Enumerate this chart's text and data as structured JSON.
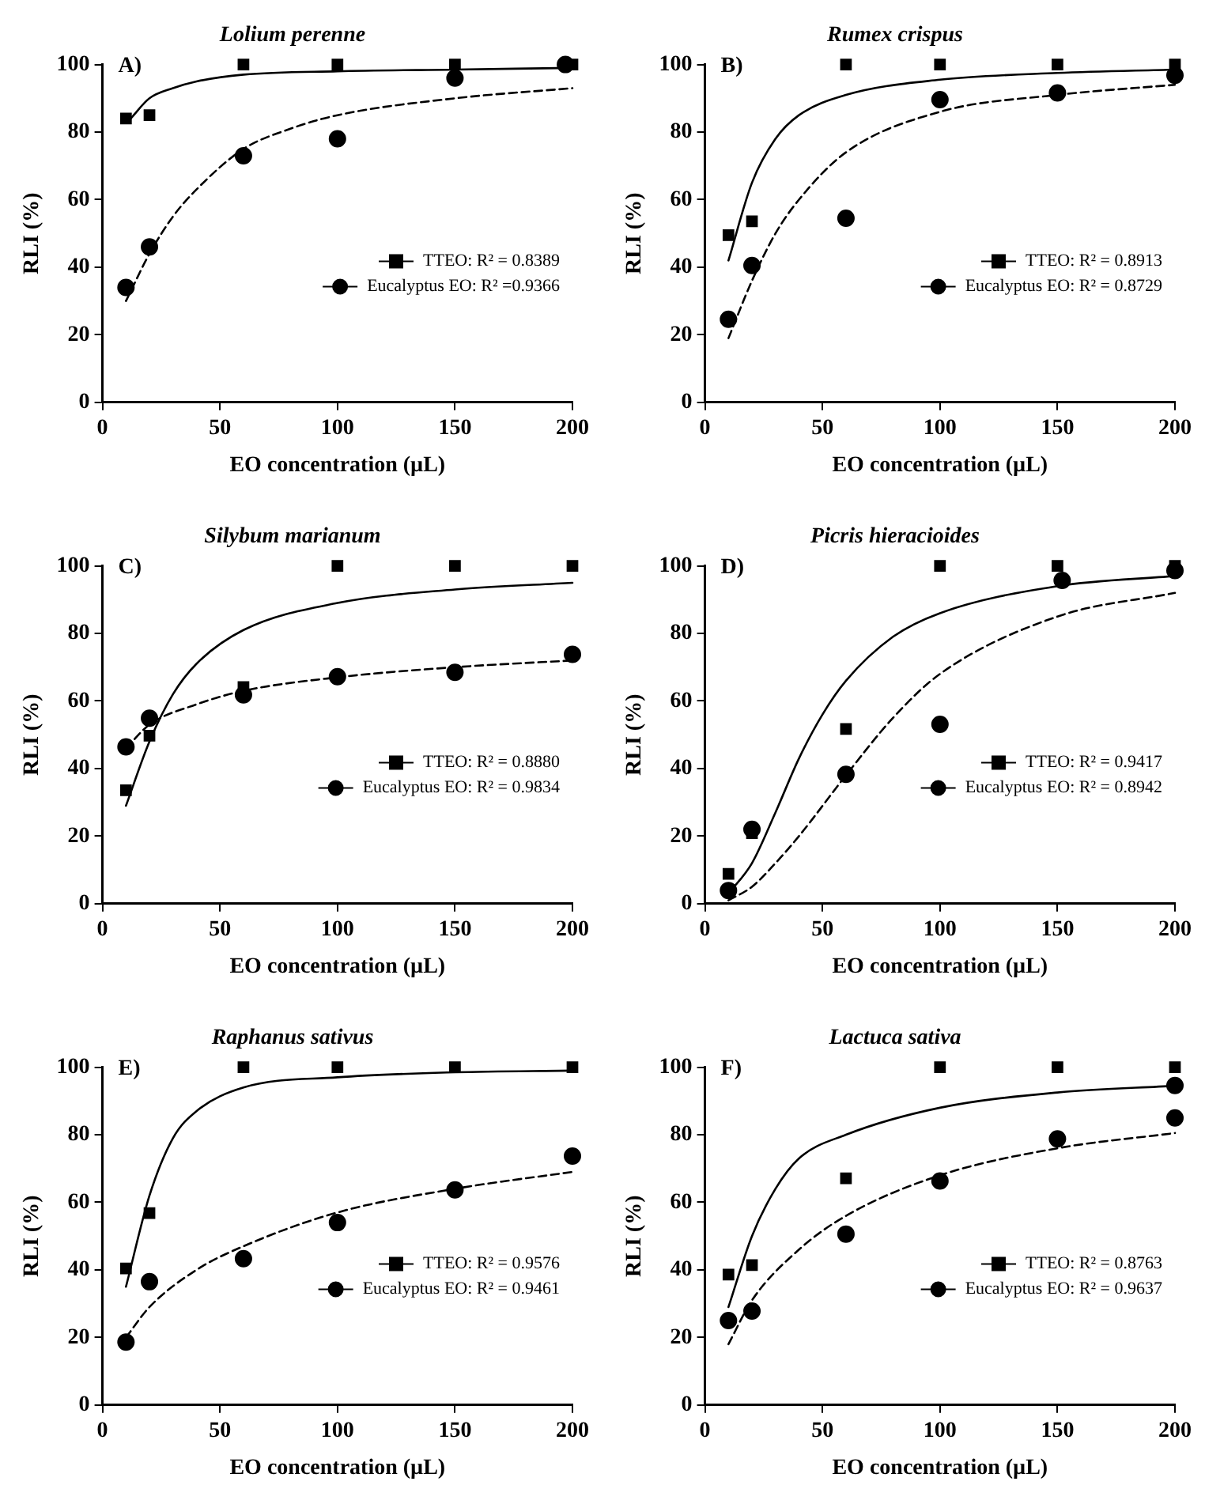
{
  "chart_data": [
    {
      "type": "scatter",
      "title": "Lolium perenne",
      "annotations": [
        "A)"
      ],
      "xlabel": "EO concentration (µL)",
      "ylabel": "RLI (%)",
      "xlim": [
        0,
        200
      ],
      "xticks": [
        0,
        50,
        100,
        150,
        200
      ],
      "ylim": [
        0,
        100
      ],
      "yticks": [
        0,
        20,
        40,
        60,
        80,
        100
      ],
      "grid": false,
      "legend": "right",
      "series": [
        {
          "name": "TTEO: R² = 0.8389",
          "type": "scatter",
          "marker": "square",
          "color": "#000000",
          "x": [
            10,
            20,
            60,
            100,
            150,
            200
          ],
          "values": [
            84,
            85,
            100,
            100,
            100,
            100
          ]
        },
        {
          "name": "Eucalyptus EO: R² =0.9366",
          "type": "scatter",
          "marker": "circle",
          "color": "#000000",
          "x": [
            10,
            20,
            60,
            100,
            150,
            197
          ],
          "values": [
            34,
            46,
            73,
            78,
            96,
            100
          ]
        },
        {
          "type": "line",
          "marker": "none",
          "line_style": "solid",
          "color": "#000000",
          "x": [
            12,
            20,
            30,
            40,
            60,
            100,
            150,
            200
          ],
          "values": [
            84,
            90,
            93,
            95,
            97,
            98,
            98.5,
            99
          ]
        },
        {
          "type": "line",
          "marker": "none",
          "line_style": "dashed",
          "color": "#000000",
          "x": [
            10,
            20,
            30,
            40,
            60,
            80,
            100,
            150,
            200
          ],
          "values": [
            30,
            44,
            55,
            63,
            75,
            81,
            85,
            90,
            93
          ]
        }
      ]
    },
    {
      "type": "scatter",
      "title": "Rumex crispus",
      "annotations": [
        "B)"
      ],
      "xlabel": "EO concentration (µL)",
      "ylabel": "RLI (%)",
      "xlim": [
        0,
        200
      ],
      "xticks": [
        0,
        50,
        100,
        150,
        200
      ],
      "ylim": [
        0,
        100
      ],
      "yticks": [
        0,
        20,
        40,
        60,
        80,
        100
      ],
      "grid": false,
      "legend": "right",
      "series": [
        {
          "name": "TTEO: R² = 0.8913",
          "type": "scatter",
          "marker": "square",
          "color": "#000000",
          "x": [
            10,
            20,
            60,
            100,
            150,
            200
          ],
          "values": [
            49.5,
            53.6,
            100,
            100,
            100,
            100
          ]
        },
        {
          "name": "Eucalyptus EO: R² = 0.8729",
          "type": "scatter",
          "marker": "circle",
          "color": "#000000",
          "x": [
            10,
            20,
            60,
            100,
            150,
            200
          ],
          "values": [
            24.6,
            40.5,
            54.5,
            89.6,
            91.6,
            96.8
          ]
        },
        {
          "type": "line",
          "marker": "none",
          "line_style": "solid",
          "color": "#000000",
          "x": [
            10,
            20,
            30,
            40,
            60,
            100,
            150,
            200
          ],
          "values": [
            42,
            65,
            78,
            85,
            91,
            95.5,
            97.5,
            98.5
          ]
        },
        {
          "type": "line",
          "marker": "none",
          "line_style": "dashed",
          "color": "#000000",
          "x": [
            10,
            20,
            30,
            40,
            60,
            100,
            150,
            200
          ],
          "values": [
            19,
            36,
            50,
            60,
            74,
            86,
            91,
            94
          ]
        }
      ]
    },
    {
      "type": "scatter",
      "title": "Silybum marianum",
      "annotations": [
        "C)"
      ],
      "xlabel": "EO concentration (µL)",
      "ylabel": "RLI (%)",
      "xlim": [
        0,
        200
      ],
      "xticks": [
        0,
        50,
        100,
        150,
        200
      ],
      "ylim": [
        0,
        100
      ],
      "yticks": [
        0,
        20,
        40,
        60,
        80,
        100
      ],
      "grid": false,
      "legend": "right",
      "series": [
        {
          "name": "TTEO: R² = 0.8880",
          "type": "scatter",
          "marker": "square",
          "color": "#000000",
          "x": [
            10,
            20,
            60,
            100,
            150,
            200
          ],
          "values": [
            33.6,
            49.7,
            64.1,
            100,
            100,
            100
          ]
        },
        {
          "name": "Eucalyptus EO: R² = 0.9834",
          "type": "scatter",
          "marker": "circle",
          "color": "#000000",
          "x": [
            10,
            20,
            60,
            100,
            150,
            200
          ],
          "values": [
            46.4,
            54.9,
            61.8,
            67.2,
            68.5,
            73.8
          ]
        },
        {
          "type": "line",
          "marker": "none",
          "line_style": "solid",
          "color": "#000000",
          "x": [
            10,
            20,
            30,
            40,
            60,
            100,
            150,
            200
          ],
          "values": [
            29,
            48,
            62,
            71,
            81,
            89,
            93,
            95
          ]
        },
        {
          "type": "line",
          "marker": "none",
          "line_style": "dashed",
          "color": "#000000",
          "x": [
            10,
            20,
            40,
            60,
            100,
            150,
            200
          ],
          "values": [
            46,
            53,
            59,
            63,
            67,
            70,
            72
          ]
        }
      ]
    },
    {
      "type": "scatter",
      "title": "Picris hieracioides",
      "annotations": [
        "D)"
      ],
      "xlabel": "EO concentration (µL)",
      "ylabel": "RLI (%)",
      "xlim": [
        0,
        200
      ],
      "xticks": [
        0,
        50,
        100,
        150,
        200
      ],
      "ylim": [
        0,
        100
      ],
      "yticks": [
        0,
        20,
        40,
        60,
        80,
        100
      ],
      "grid": false,
      "legend": "right",
      "series": [
        {
          "name": "TTEO: R² = 0.9417",
          "type": "scatter",
          "marker": "square",
          "color": "#000000",
          "x": [
            10,
            20,
            60,
            100,
            150,
            200
          ],
          "values": [
            8.8,
            20.9,
            51.7,
            100,
            100,
            100
          ]
        },
        {
          "name": "Eucalyptus EO: R² = 0.8942",
          "type": "scatter",
          "marker": "circle",
          "color": "#000000",
          "x": [
            10,
            20,
            60,
            100,
            152,
            200
          ],
          "values": [
            3.9,
            22,
            38.3,
            53.1,
            95.7,
            98.6
          ]
        },
        {
          "type": "line",
          "marker": "none",
          "line_style": "solid",
          "color": "#000000",
          "x": [
            10,
            20,
            30,
            40,
            50,
            60,
            80,
            100,
            150,
            200
          ],
          "values": [
            3,
            12,
            27,
            43,
            56,
            66,
            79,
            86,
            94,
            97
          ]
        },
        {
          "type": "line",
          "marker": "none",
          "line_style": "dashed",
          "color": "#000000",
          "x": [
            10,
            20,
            30,
            40,
            60,
            80,
            100,
            150,
            200
          ],
          "values": [
            1,
            5,
            12,
            20,
            38,
            55,
            68,
            85,
            92
          ]
        }
      ]
    },
    {
      "type": "scatter",
      "title": "Raphanus sativus",
      "annotations": [
        "E)"
      ],
      "xlabel": "EO concentration (µL)",
      "ylabel": "RLI (%)",
      "xlim": [
        0,
        200
      ],
      "xticks": [
        0,
        50,
        100,
        150,
        200
      ],
      "ylim": [
        0,
        100
      ],
      "yticks": [
        0,
        20,
        40,
        60,
        80,
        100
      ],
      "grid": false,
      "legend": "right",
      "series": [
        {
          "name": "TTEO: R² = 0.9576",
          "type": "scatter",
          "marker": "square",
          "color": "#000000",
          "x": [
            10,
            20,
            60,
            100,
            150,
            200
          ],
          "values": [
            40.4,
            56.8,
            100,
            100,
            100,
            100
          ]
        },
        {
          "name": "Eucalyptus EO: R² = 0.9461",
          "type": "scatter",
          "marker": "circle",
          "color": "#000000",
          "x": [
            10,
            20,
            60,
            100,
            150,
            200
          ],
          "values": [
            18.6,
            36.5,
            43.3,
            54,
            63.7,
            73.7
          ]
        },
        {
          "type": "line",
          "marker": "none",
          "line_style": "solid",
          "color": "#000000",
          "x": [
            10,
            20,
            30,
            40,
            60,
            100,
            150,
            200
          ],
          "values": [
            35,
            62,
            79,
            87,
            94,
            97,
            98.5,
            99
          ]
        },
        {
          "type": "line",
          "marker": "none",
          "line_style": "dashed",
          "color": "#000000",
          "x": [
            10,
            20,
            40,
            60,
            100,
            150,
            200
          ],
          "values": [
            20,
            29,
            40,
            47,
            57,
            64,
            69
          ]
        }
      ]
    },
    {
      "type": "scatter",
      "title": "Lactuca sativa",
      "annotations": [
        "F)"
      ],
      "xlabel": "EO concentration (µL)",
      "ylabel": "RLI (%)",
      "xlim": [
        0,
        200
      ],
      "xticks": [
        0,
        50,
        100,
        150,
        200
      ],
      "ylim": [
        0,
        100
      ],
      "yticks": [
        0,
        20,
        40,
        60,
        80,
        100
      ],
      "grid": false,
      "legend": "right",
      "series": [
        {
          "name": "TTEO: R² = 0.8763",
          "type": "scatter",
          "marker": "square",
          "color": "#000000",
          "x": [
            10,
            20,
            60,
            100,
            150,
            200
          ],
          "values": [
            38.6,
            41.4,
            67.1,
            100,
            100,
            100
          ]
        },
        {
          "name": "Eucalyptus EO: R² = 0.9637",
          "type": "scatter",
          "marker": "circle",
          "color": "#000000",
          "x": [
            10,
            20,
            60,
            100,
            150,
            200,
            200
          ],
          "values": [
            25,
            27.8,
            50.6,
            66.3,
            78.8,
            85,
            94.6
          ]
        },
        {
          "type": "line",
          "marker": "none",
          "line_style": "solid",
          "color": "#000000",
          "x": [
            10,
            20,
            30,
            40,
            60,
            100,
            150,
            200
          ],
          "values": [
            29,
            50,
            64,
            73,
            80,
            88,
            92.5,
            94.5
          ]
        },
        {
          "type": "line",
          "marker": "none",
          "line_style": "dashed",
          "color": "#000000",
          "x": [
            10,
            20,
            40,
            60,
            100,
            150,
            200
          ],
          "values": [
            18,
            31,
            46,
            56,
            68,
            76,
            80.5
          ]
        }
      ]
    }
  ]
}
